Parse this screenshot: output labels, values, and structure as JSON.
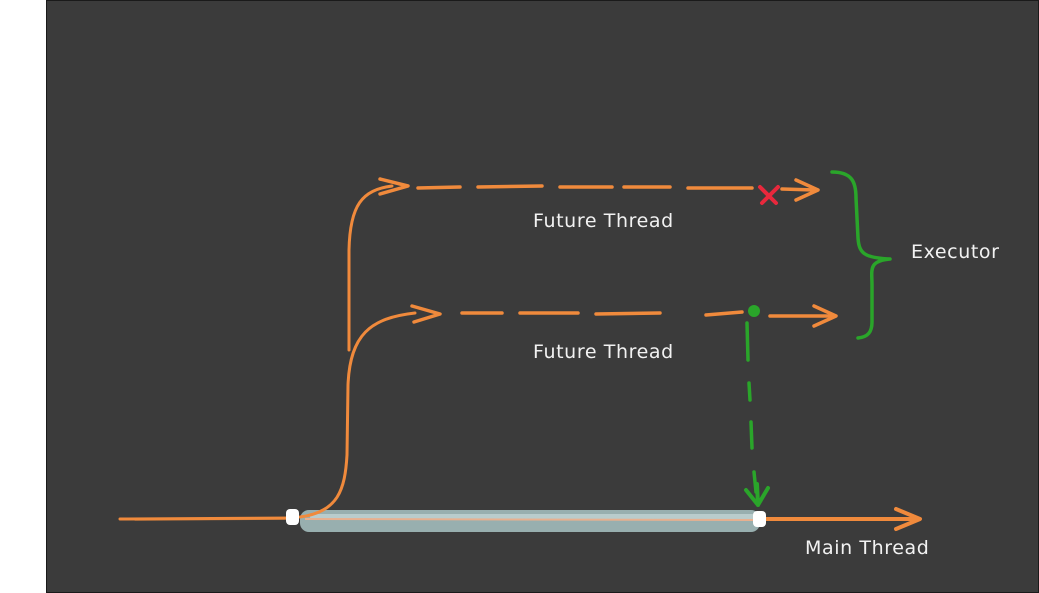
{
  "diagram": {
    "labels": {
      "future_thread_top": "Future Thread",
      "future_thread_bottom": "Future Thread",
      "executor": "Executor",
      "main_thread": "Main Thread"
    },
    "colors": {
      "background": "#3b3b3b",
      "thread_line": "#f08a3c",
      "join_line": "#2aa52a",
      "cancel_mark": "#e8283c",
      "wait_band": "#a9c4c4",
      "node": "#ffffff"
    },
    "icons": {
      "cancel": "x-mark-icon",
      "node": "thread-node-icon",
      "join": "arrow-down-icon"
    }
  }
}
